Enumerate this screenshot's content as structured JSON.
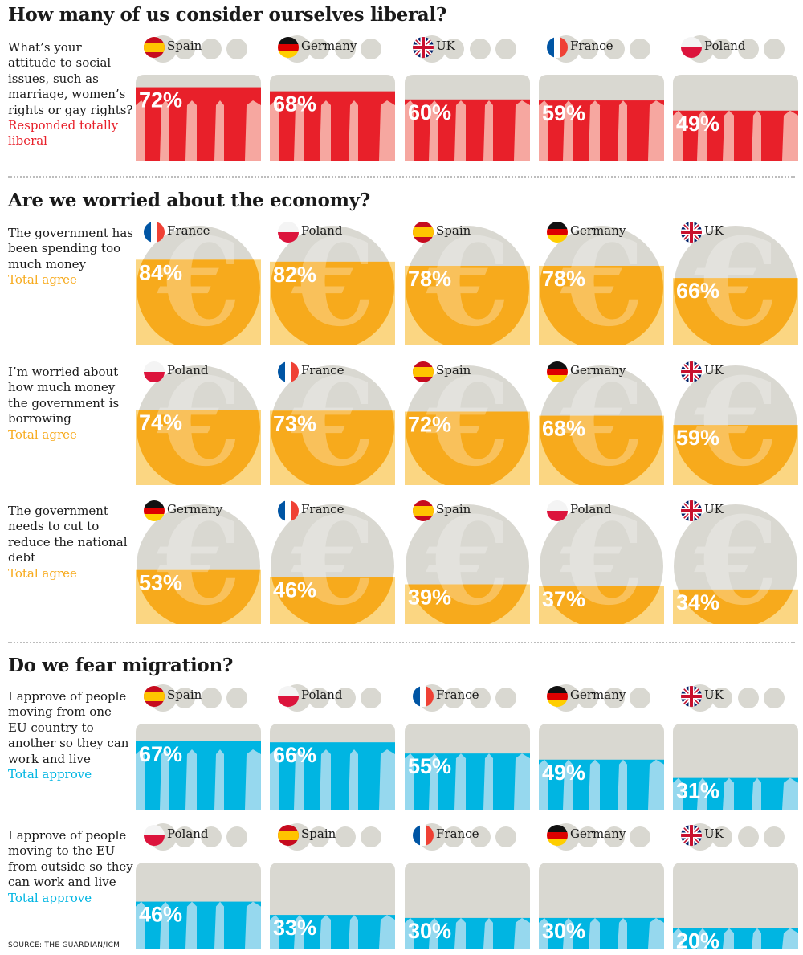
{
  "colors": {
    "liberal": "#e8202a",
    "liberal_light": "#f6a7a0",
    "economy": "#f7aa1c",
    "economy_light": "#fbd682",
    "migration": "#00b5e2",
    "migration_light": "#96d8ee",
    "grey": "#d9d8d1",
    "text": "#1a1a1a"
  },
  "sections": [
    {
      "title": "How many of us consider ourselves liberal?"
    },
    {
      "title": "Are we worried about the economy?"
    },
    {
      "title": "Do we fear migration?"
    }
  ],
  "source": "SOURCE: THE GUARDIAN/ICM",
  "chart_data": [
    {
      "type": "bar",
      "section": 0,
      "style": "people",
      "color": "liberal",
      "question": "What’s your attitude to social issues, such as marriage, women’s rights or gay rights?",
      "metric": "Responded totally liberal",
      "categories": [
        "Spain",
        "Germany",
        "UK",
        "France",
        "Poland"
      ],
      "values": [
        72,
        68,
        60,
        59,
        49
      ],
      "labels": [
        "72%",
        "68%",
        "60%",
        "59%",
        "49%"
      ],
      "ylim": [
        0,
        100
      ]
    },
    {
      "type": "bar",
      "section": 1,
      "style": "coin",
      "color": "economy",
      "question": "The government has been spending too much money",
      "metric": "Total agree",
      "categories": [
        "France",
        "Poland",
        "Spain",
        "Germany",
        "UK"
      ],
      "values": [
        84,
        82,
        78,
        78,
        66
      ],
      "labels": [
        "84%",
        "82%",
        "78%",
        "78%",
        "66%"
      ],
      "ylim": [
        0,
        100
      ]
    },
    {
      "type": "bar",
      "section": 1,
      "style": "coin",
      "color": "economy",
      "question": "I’m worried about how much money the government is borrowing",
      "metric": "Total agree",
      "categories": [
        "Poland",
        "France",
        "Spain",
        "Germany",
        "UK"
      ],
      "values": [
        74,
        73,
        72,
        68,
        59
      ],
      "labels": [
        "74%",
        "73%",
        "72%",
        "68%",
        "59%"
      ],
      "ylim": [
        0,
        100
      ]
    },
    {
      "type": "bar",
      "section": 1,
      "style": "coin",
      "color": "economy",
      "question": "The government needs to cut to reduce the national debt",
      "metric": "Total agree",
      "categories": [
        "Germany",
        "France",
        "Spain",
        "Poland",
        "UK"
      ],
      "values": [
        53,
        46,
        39,
        37,
        34
      ],
      "labels": [
        "53%",
        "46%",
        "39%",
        "37%",
        "34%"
      ],
      "ylim": [
        0,
        100
      ]
    },
    {
      "type": "bar",
      "section": 2,
      "style": "people",
      "color": "migration",
      "question": "I approve of people moving from one EU country to another so they can work and live",
      "metric": "Total approve",
      "categories": [
        "Spain",
        "Poland",
        "France",
        "Germany",
        "UK"
      ],
      "values": [
        67,
        66,
        55,
        49,
        31
      ],
      "labels": [
        "67%",
        "66%",
        "55%",
        "49%",
        "31%"
      ],
      "ylim": [
        0,
        100
      ]
    },
    {
      "type": "bar",
      "section": 2,
      "style": "people",
      "color": "migration",
      "question": "I approve of people moving to the EU from outside so they can work and live",
      "metric": "Total approve",
      "categories": [
        "Poland",
        "Spain",
        "France",
        "Germany",
        "UK"
      ],
      "values": [
        46,
        33,
        30,
        30,
        20
      ],
      "labels": [
        "46%",
        "33%",
        "30%",
        "30%",
        "20%"
      ],
      "ylim": [
        0,
        100
      ]
    }
  ]
}
